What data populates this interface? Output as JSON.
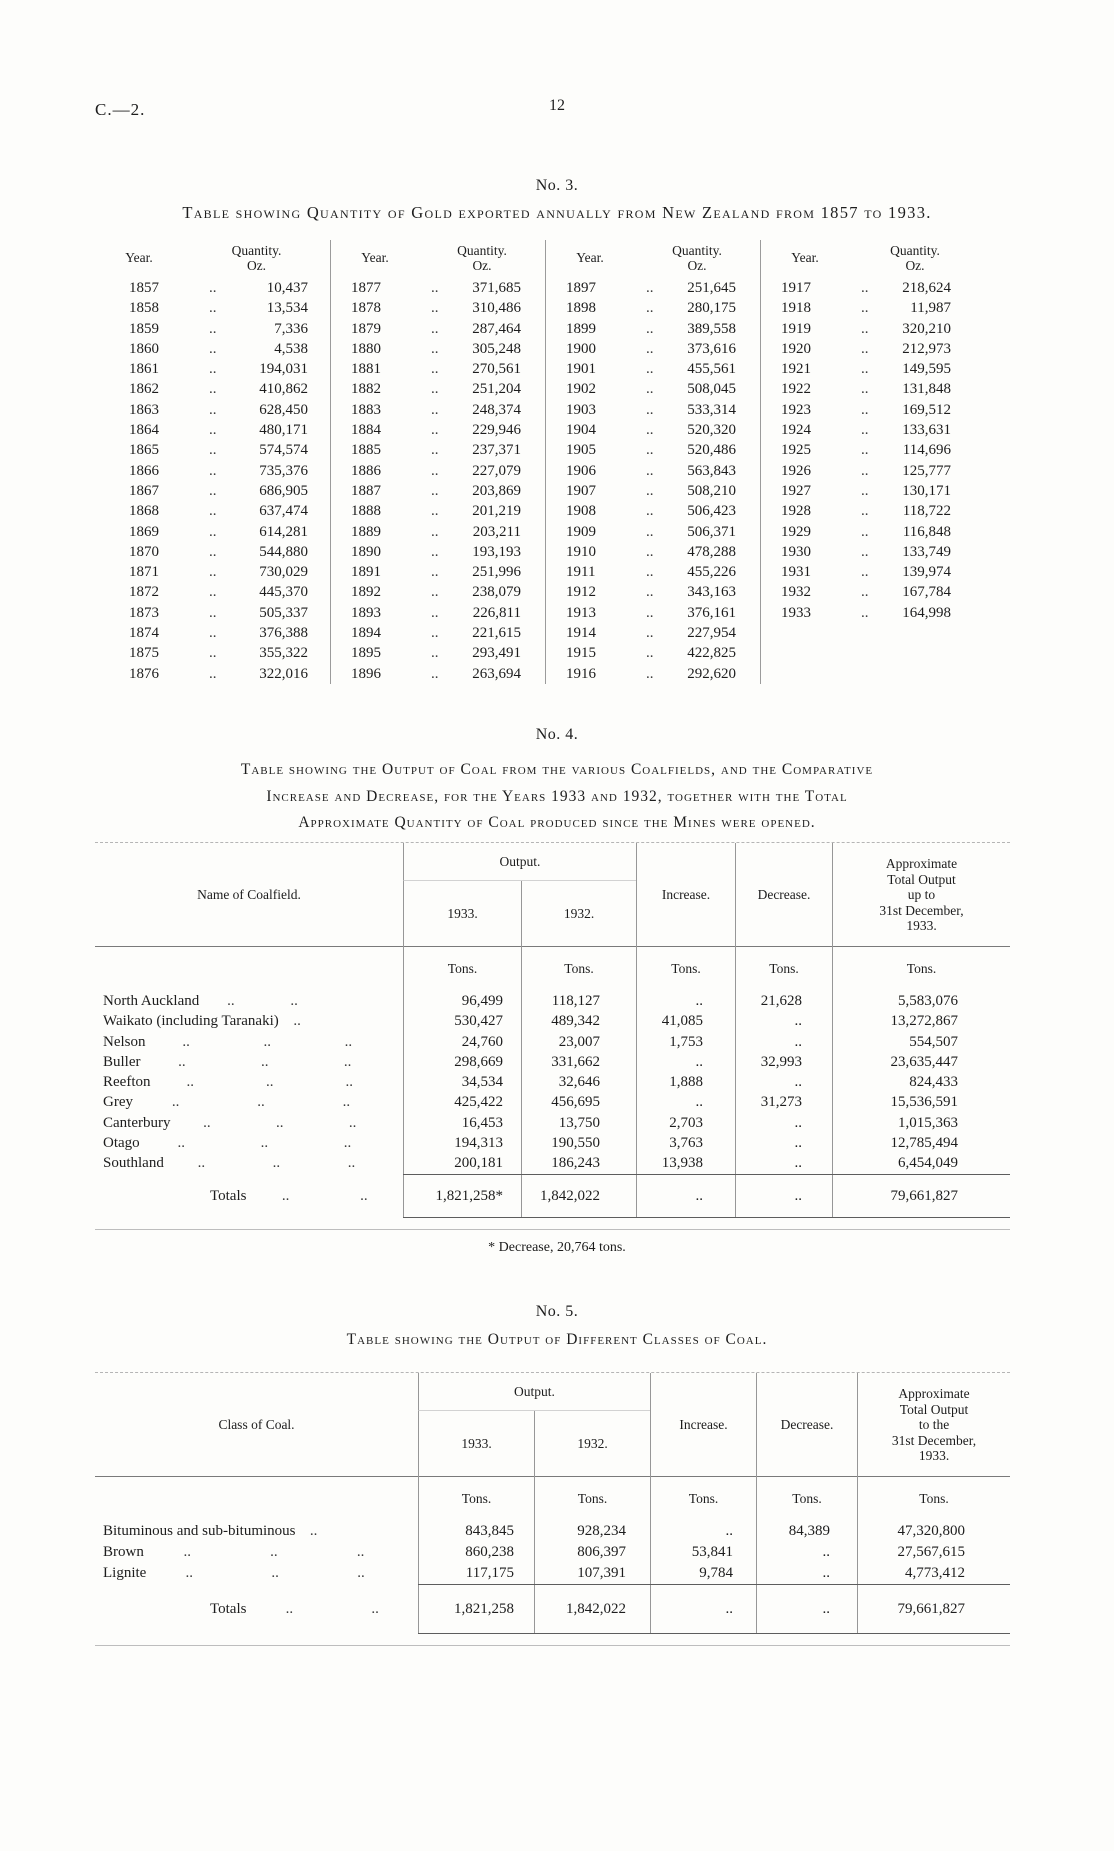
{
  "glyphs": {
    "leader": "..",
    "tons": "Tons."
  },
  "page": {
    "doc_ref": "C.—2.",
    "page_number": "12"
  },
  "table3": {
    "heading": "No. 3.",
    "title": "Table showing Quantity of Gold exported annually from New Zealand from 1857 to 1933.",
    "year_label": "Year.",
    "qty_label": "Quantity.",
    "qty_unit": "Oz.",
    "groups": [
      {
        "rows": [
          {
            "year": "1857",
            "qty": "10,437"
          },
          {
            "year": "1858",
            "qty": "13,534"
          },
          {
            "year": "1859",
            "qty": "7,336"
          },
          {
            "year": "1860",
            "qty": "4,538"
          },
          {
            "year": "1861",
            "qty": "194,031"
          },
          {
            "year": "1862",
            "qty": "410,862"
          },
          {
            "year": "1863",
            "qty": "628,450"
          },
          {
            "year": "1864",
            "qty": "480,171"
          },
          {
            "year": "1865",
            "qty": "574,574"
          },
          {
            "year": "1866",
            "qty": "735,376"
          },
          {
            "year": "1867",
            "qty": "686,905"
          },
          {
            "year": "1868",
            "qty": "637,474"
          },
          {
            "year": "1869",
            "qty": "614,281"
          },
          {
            "year": "1870",
            "qty": "544,880"
          },
          {
            "year": "1871",
            "qty": "730,029"
          },
          {
            "year": "1872",
            "qty": "445,370"
          },
          {
            "year": "1873",
            "qty": "505,337"
          },
          {
            "year": "1874",
            "qty": "376,388"
          },
          {
            "year": "1875",
            "qty": "355,322"
          },
          {
            "year": "1876",
            "qty": "322,016"
          }
        ]
      },
      {
        "rows": [
          {
            "year": "1877",
            "qty": "371,685"
          },
          {
            "year": "1878",
            "qty": "310,486"
          },
          {
            "year": "1879",
            "qty": "287,464"
          },
          {
            "year": "1880",
            "qty": "305,248"
          },
          {
            "year": "1881",
            "qty": "270,561"
          },
          {
            "year": "1882",
            "qty": "251,204"
          },
          {
            "year": "1883",
            "qty": "248,374"
          },
          {
            "year": "1884",
            "qty": "229,946"
          },
          {
            "year": "1885",
            "qty": "237,371"
          },
          {
            "year": "1886",
            "qty": "227,079"
          },
          {
            "year": "1887",
            "qty": "203,869"
          },
          {
            "year": "1888",
            "qty": "201,219"
          },
          {
            "year": "1889",
            "qty": "203,211"
          },
          {
            "year": "1890",
            "qty": "193,193"
          },
          {
            "year": "1891",
            "qty": "251,996"
          },
          {
            "year": "1892",
            "qty": "238,079"
          },
          {
            "year": "1893",
            "qty": "226,811"
          },
          {
            "year": "1894",
            "qty": "221,615"
          },
          {
            "year": "1895",
            "qty": "293,491"
          },
          {
            "year": "1896",
            "qty": "263,694"
          }
        ]
      },
      {
        "rows": [
          {
            "year": "1897",
            "qty": "251,645"
          },
          {
            "year": "1898",
            "qty": "280,175"
          },
          {
            "year": "1899",
            "qty": "389,558"
          },
          {
            "year": "1900",
            "qty": "373,616"
          },
          {
            "year": "1901",
            "qty": "455,561"
          },
          {
            "year": "1902",
            "qty": "508,045"
          },
          {
            "year": "1903",
            "qty": "533,314"
          },
          {
            "year": "1904",
            "qty": "520,320"
          },
          {
            "year": "1905",
            "qty": "520,486"
          },
          {
            "year": "1906",
            "qty": "563,843"
          },
          {
            "year": "1907",
            "qty": "508,210"
          },
          {
            "year": "1908",
            "qty": "506,423"
          },
          {
            "year": "1909",
            "qty": "506,371"
          },
          {
            "year": "1910",
            "qty": "478,288"
          },
          {
            "year": "1911",
            "qty": "455,226"
          },
          {
            "year": "1912",
            "qty": "343,163"
          },
          {
            "year": "1913",
            "qty": "376,161"
          },
          {
            "year": "1914",
            "qty": "227,954"
          },
          {
            "year": "1915",
            "qty": "422,825"
          },
          {
            "year": "1916",
            "qty": "292,620"
          }
        ]
      },
      {
        "rows": [
          {
            "year": "1917",
            "qty": "218,624"
          },
          {
            "year": "1918",
            "qty": "11,987"
          },
          {
            "year": "1919",
            "qty": "320,210"
          },
          {
            "year": "1920",
            "qty": "212,973"
          },
          {
            "year": "1921",
            "qty": "149,595"
          },
          {
            "year": "1922",
            "qty": "131,848"
          },
          {
            "year": "1923",
            "qty": "169,512"
          },
          {
            "year": "1924",
            "qty": "133,631"
          },
          {
            "year": "1925",
            "qty": "114,696"
          },
          {
            "year": "1926",
            "qty": "125,777"
          },
          {
            "year": "1927",
            "qty": "130,171"
          },
          {
            "year": "1928",
            "qty": "118,722"
          },
          {
            "year": "1929",
            "qty": "116,848"
          },
          {
            "year": "1930",
            "qty": "133,749"
          },
          {
            "year": "1931",
            "qty": "139,974"
          },
          {
            "year": "1932",
            "qty": "167,784"
          },
          {
            "year": "1933",
            "qty": "164,998"
          }
        ]
      }
    ]
  },
  "table4": {
    "heading": "No. 4.",
    "title_lines": [
      "Table showing the Output of Coal from the various Coalfields, and the Comparative",
      "Increase and Decrease, for the Years 1933 and 1932, together with the Total",
      "Approximate Quantity of Coal produced since the Mines were opened."
    ],
    "headers": {
      "name": "Name of Coalfield.",
      "output": "Output.",
      "y1933": "1933.",
      "y1932": "1932.",
      "increase": "Increase.",
      "decrease": "Decrease.",
      "total_lines": [
        "Approximate",
        "Total Output",
        "up to",
        "31st December,",
        "1933."
      ]
    },
    "rows": [
      {
        "name": "North Auckland",
        "l1": "..",
        "l2": "..",
        "l3": "",
        "y1933": "96,499",
        "y1932": "118,127",
        "inc": "..",
        "dec": "21,628",
        "total": "5,583,076"
      },
      {
        "name": "Waikato (including Taranaki)",
        "l1": "..",
        "l2": "",
        "l3": "",
        "y1933": "530,427",
        "y1932": "489,342",
        "inc": "41,085",
        "dec": "..",
        "total": "13,272,867"
      },
      {
        "name": "Nelson",
        "l1": "..",
        "l2": "..",
        "l3": "..",
        "y1933": "24,760",
        "y1932": "23,007",
        "inc": "1,753",
        "dec": "..",
        "total": "554,507"
      },
      {
        "name": "Buller",
        "l1": "..",
        "l2": "..",
        "l3": "..",
        "y1933": "298,669",
        "y1932": "331,662",
        "inc": "..",
        "dec": "32,993",
        "total": "23,635,447"
      },
      {
        "name": "Reefton",
        "l1": "..",
        "l2": "..",
        "l3": "..",
        "y1933": "34,534",
        "y1932": "32,646",
        "inc": "1,888",
        "dec": "..",
        "total": "824,433"
      },
      {
        "name": "Grey",
        "l1": "..",
        "l2": "..",
        "l3": "..",
        "y1933": "425,422",
        "y1932": "456,695",
        "inc": "..",
        "dec": "31,273",
        "total": "15,536,591"
      },
      {
        "name": "Canterbury",
        "l1": "..",
        "l2": "..",
        "l3": "..",
        "y1933": "16,453",
        "y1932": "13,750",
        "inc": "2,703",
        "dec": "..",
        "total": "1,015,363"
      },
      {
        "name": "Otago",
        "l1": "..",
        "l2": "..",
        "l3": "..",
        "y1933": "194,313",
        "y1932": "190,550",
        "inc": "3,763",
        "dec": "..",
        "total": "12,785,494"
      },
      {
        "name": "Southland",
        "l1": "..",
        "l2": "..",
        "l3": "..",
        "y1933": "200,181",
        "y1932": "186,243",
        "inc": "13,938",
        "dec": "..",
        "total": "6,454,049"
      }
    ],
    "totals": {
      "label": "Totals",
      "y1933": "1,821,258*",
      "y1932": "1,842,022",
      "inc": "..",
      "dec": "..",
      "total": "79,661,827"
    },
    "footnote": "* Decrease, 20,764 tons."
  },
  "table5": {
    "heading": "No. 5.",
    "title": "Table showing the Output of Different Classes of Coal.",
    "headers": {
      "name": "Class of Coal.",
      "output": "Output.",
      "y1933": "1933.",
      "y1932": "1932.",
      "increase": "Increase.",
      "decrease": "Decrease.",
      "total_lines": [
        "Approximate",
        "Total Output",
        "to the",
        "31st December,",
        "1933."
      ]
    },
    "rows": [
      {
        "name": "Bituminous and sub-bituminous",
        "l1": "..",
        "l2": "",
        "l3": "",
        "y1933": "843,845",
        "y1932": "928,234",
        "inc": "..",
        "dec": "84,389",
        "total": "47,320,800"
      },
      {
        "name": "Brown",
        "l1": "..",
        "l2": "..",
        "l3": "..",
        "y1933": "860,238",
        "y1932": "806,397",
        "inc": "53,841",
        "dec": "..",
        "total": "27,567,615"
      },
      {
        "name": "Lignite",
        "l1": "..",
        "l2": "..",
        "l3": "..",
        "y1933": "117,175",
        "y1932": "107,391",
        "inc": "9,784",
        "dec": "..",
        "total": "4,773,412"
      }
    ],
    "totals": {
      "label": "Totals",
      "y1933": "1,821,258",
      "y1932": "1,842,022",
      "inc": "..",
      "dec": "..",
      "total": "79,661,827"
    }
  }
}
